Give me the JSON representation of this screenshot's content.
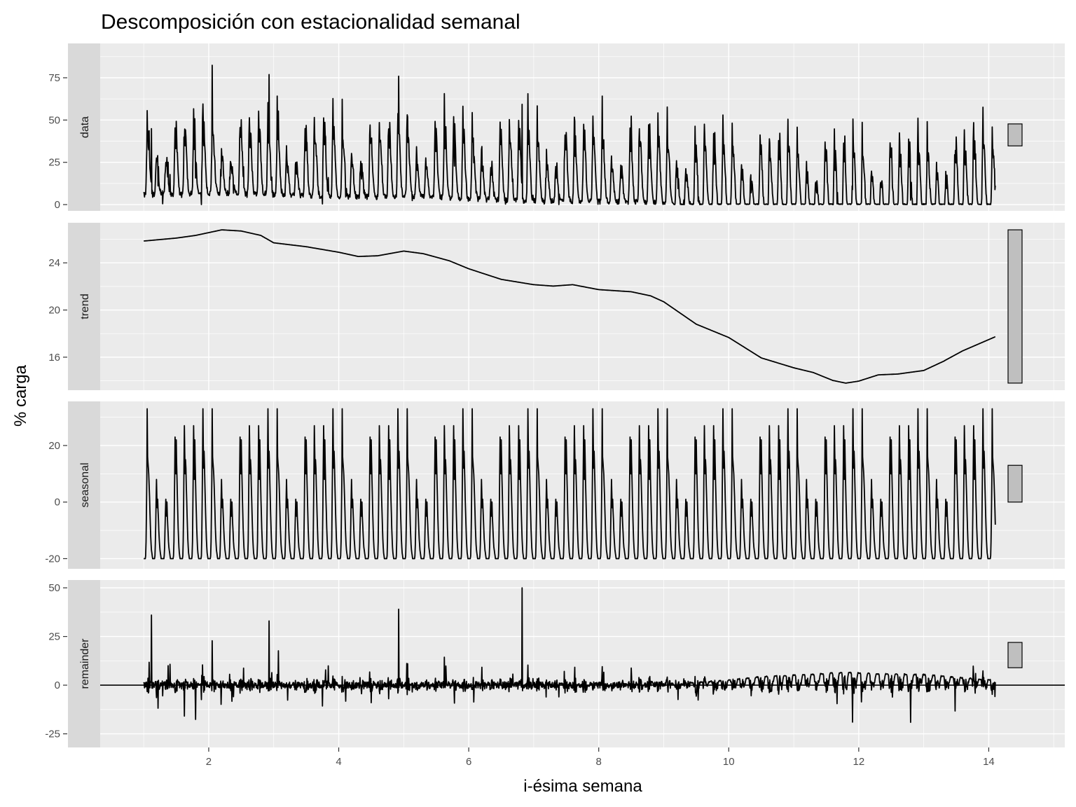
{
  "chart_data": {
    "type": "line",
    "title": "Descomposición con estacionalidad semanal",
    "xlabel": "i-ésima semana",
    "ylabel": "% carga",
    "xlim": [
      0.33,
      15.17
    ],
    "x_ticks": [
      2,
      4,
      6,
      8,
      10,
      12,
      14
    ],
    "x_start": 1.0,
    "x_end": 14.1,
    "samples_per_week": 168,
    "grid": true,
    "line_color": "#000000",
    "panel_background": "#ebebeb",
    "strip_background": "#d9d9d9",
    "range_bar_color": "#bfbfbf",
    "range_bar_length": 13,
    "panels": [
      {
        "name": "data",
        "ylim": [
          -3.7,
          95.3
        ],
        "ticks": [
          0,
          25,
          50,
          75
        ],
        "minor": [
          12.5,
          37.5,
          62.5,
          87.5
        ]
      },
      {
        "name": "trend",
        "ylim": [
          13.2,
          27.4
        ],
        "ticks": [
          16,
          20,
          24
        ],
        "minor": [
          14,
          18,
          22,
          26
        ]
      },
      {
        "name": "seasonal",
        "ylim": [
          -23.6,
          35.6
        ],
        "ticks": [
          -20,
          0,
          20
        ],
        "minor": [
          -10,
          10,
          30
        ]
      },
      {
        "name": "remainder",
        "ylim": [
          -32,
          54
        ],
        "ticks": [
          -25,
          0,
          25,
          50
        ],
        "minor": [
          -12.5,
          12.5,
          37.5
        ],
        "zero_line": true
      }
    ],
    "trend": [
      [
        1.0,
        25.85
      ],
      [
        1.5,
        26.1
      ],
      [
        1.8,
        26.33
      ],
      [
        2.2,
        26.8
      ],
      [
        2.5,
        26.7
      ],
      [
        2.8,
        26.33
      ],
      [
        3.0,
        25.7
      ],
      [
        3.5,
        25.37
      ],
      [
        4.0,
        24.9
      ],
      [
        4.3,
        24.54
      ],
      [
        4.6,
        24.6
      ],
      [
        5.0,
        25.0
      ],
      [
        5.3,
        24.78
      ],
      [
        5.7,
        24.18
      ],
      [
        6.0,
        23.5
      ],
      [
        6.5,
        22.6
      ],
      [
        7.0,
        22.15
      ],
      [
        7.3,
        22.03
      ],
      [
        7.6,
        22.15
      ],
      [
        8.0,
        21.73
      ],
      [
        8.5,
        21.55
      ],
      [
        8.8,
        21.2
      ],
      [
        9.0,
        20.7
      ],
      [
        9.5,
        18.8
      ],
      [
        10.0,
        17.67
      ],
      [
        10.5,
        15.94
      ],
      [
        11.0,
        15.1
      ],
      [
        11.3,
        14.7
      ],
      [
        11.6,
        14.03
      ],
      [
        11.8,
        13.8
      ],
      [
        12.0,
        13.97
      ],
      [
        12.3,
        14.5
      ],
      [
        12.6,
        14.57
      ],
      [
        13.0,
        14.87
      ],
      [
        13.3,
        15.64
      ],
      [
        13.6,
        16.54
      ],
      [
        14.1,
        17.73
      ]
    ],
    "seasonal_week_hourly": [
      [
        -20,
        -20,
        -20,
        -20,
        -20,
        -19,
        -14,
        -4,
        8,
        33,
        16,
        14,
        12,
        10,
        6,
        2,
        -3,
        -8,
        -12,
        -15,
        -17,
        -18,
        -19,
        -20
      ],
      [
        -20,
        -20,
        -20,
        -20,
        -20,
        -19,
        -15,
        -8,
        0,
        8,
        2,
        -2,
        1,
        -3,
        -6,
        -10,
        -13,
        -15,
        -17,
        -18,
        -19,
        -20,
        -20,
        -20
      ],
      [
        -20,
        -20,
        -20,
        -20,
        -20,
        -19,
        -16,
        -10,
        -4,
        1,
        -4,
        -5,
        0,
        -5,
        -8,
        -11,
        -14,
        -16,
        -17,
        -18,
        -19,
        -20,
        -20,
        -20
      ],
      [
        -20,
        -20,
        -20,
        -20,
        -20,
        -19,
        -14,
        -3,
        10,
        23,
        15,
        10,
        22,
        14,
        8,
        2,
        -4,
        -9,
        -13,
        -16,
        -18,
        -19,
        -20,
        -20
      ],
      [
        -20,
        -20,
        -20,
        -20,
        -20,
        -19,
        -14,
        -2,
        12,
        27,
        18,
        10,
        15,
        12,
        6,
        1,
        -4,
        -9,
        -13,
        -16,
        -18,
        -19,
        -20,
        -20
      ],
      [
        -20,
        -20,
        -20,
        -20,
        -20,
        -19,
        -14,
        -2,
        12,
        27,
        16,
        8,
        22,
        14,
        7,
        1,
        -4,
        -9,
        -13,
        -16,
        -18,
        -19,
        -20,
        -20
      ],
      [
        -20,
        -20,
        -20,
        -20,
        -20,
        -19,
        -13,
        0,
        14,
        33,
        20,
        12,
        18,
        13,
        7,
        1,
        -4,
        -9,
        -13,
        -16,
        -18,
        -19,
        -20,
        -20
      ]
    ],
    "remainder_envelope": [
      [
        1,
        30,
        -18
      ],
      [
        2,
        25,
        -15
      ],
      [
        3,
        25,
        -15
      ],
      [
        4,
        22,
        -12
      ],
      [
        5,
        20,
        -10
      ],
      [
        6,
        18,
        -10
      ],
      [
        7,
        15,
        -8
      ],
      [
        8,
        12,
        -8
      ],
      [
        9,
        10,
        -10
      ],
      [
        10,
        8,
        -20
      ],
      [
        11,
        6,
        -22
      ],
      [
        12,
        8,
        -25
      ],
      [
        13,
        15,
        -18
      ],
      [
        14,
        20,
        -10
      ]
    ],
    "remainder_spikes": [
      [
        4.92,
        39
      ],
      [
        6.82,
        50
      ],
      [
        1.12,
        36
      ],
      [
        2.93,
        33
      ]
    ]
  }
}
